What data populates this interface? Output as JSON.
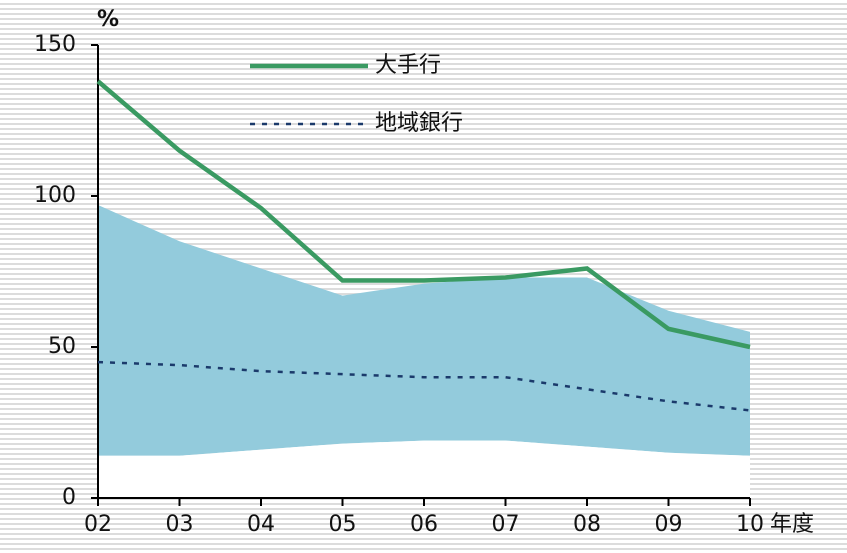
{
  "chart_data": {
    "type": "line",
    "y_unit": "%",
    "x_unit": "年度",
    "categories": [
      "02",
      "03",
      "04",
      "05",
      "06",
      "07",
      "08",
      "09",
      "10"
    ],
    "series": [
      {
        "name": "大手行",
        "color": "#3a9a62",
        "dash": "solid",
        "values": [
          138,
          115,
          96,
          72,
          72,
          73,
          76,
          56,
          50
        ]
      },
      {
        "name": "地域銀行",
        "color": "#1b3a6b",
        "dash": "dotted",
        "values": [
          45,
          44,
          42,
          41,
          40,
          40,
          36,
          32,
          29
        ]
      }
    ],
    "band": {
      "color": "#93cbdc",
      "upper": [
        97,
        85,
        76,
        67,
        71,
        73,
        73,
        62,
        55
      ],
      "lower": [
        14,
        14,
        16,
        18,
        19,
        19,
        17,
        15,
        14
      ]
    },
    "ylim": [
      0,
      150
    ],
    "yticks": [
      0,
      50,
      100,
      150
    ]
  }
}
